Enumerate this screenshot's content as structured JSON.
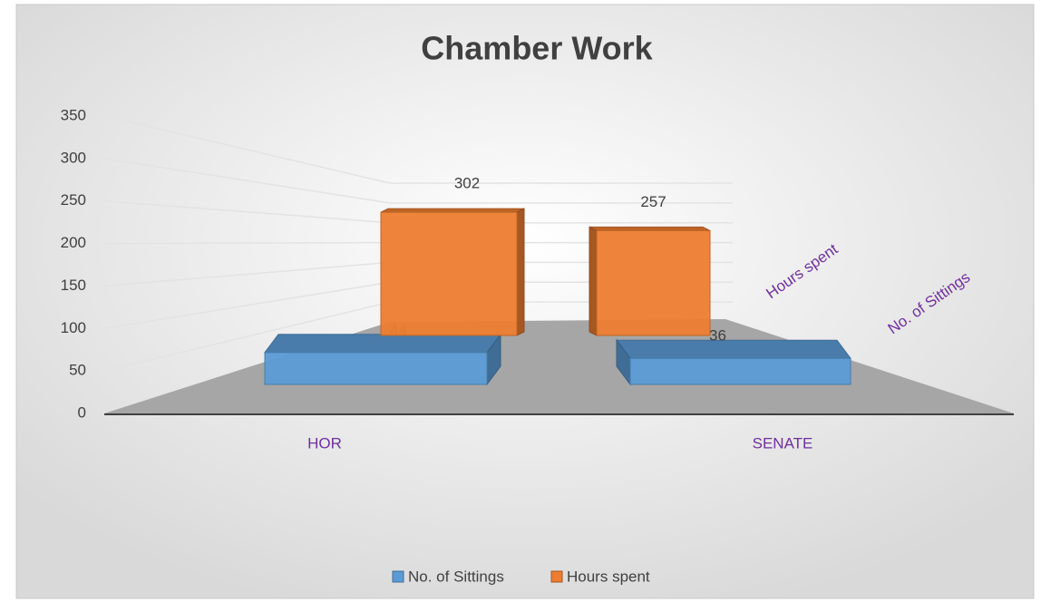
{
  "chart_data": {
    "type": "bar3d",
    "title": "Chamber Work",
    "categories": [
      "HOR",
      "SENATE"
    ],
    "series": [
      {
        "name": "No. of Sittings",
        "color": "#5b9bd5",
        "values": [
          44,
          36
        ]
      },
      {
        "name": "Hours spent",
        "color": "#ed7d31",
        "values": [
          302,
          257
        ]
      }
    ],
    "ylim": [
      0,
      350
    ],
    "yticks": [
      0,
      50,
      100,
      150,
      200,
      250,
      300,
      350
    ],
    "grid": true,
    "legend": "bottom"
  }
}
